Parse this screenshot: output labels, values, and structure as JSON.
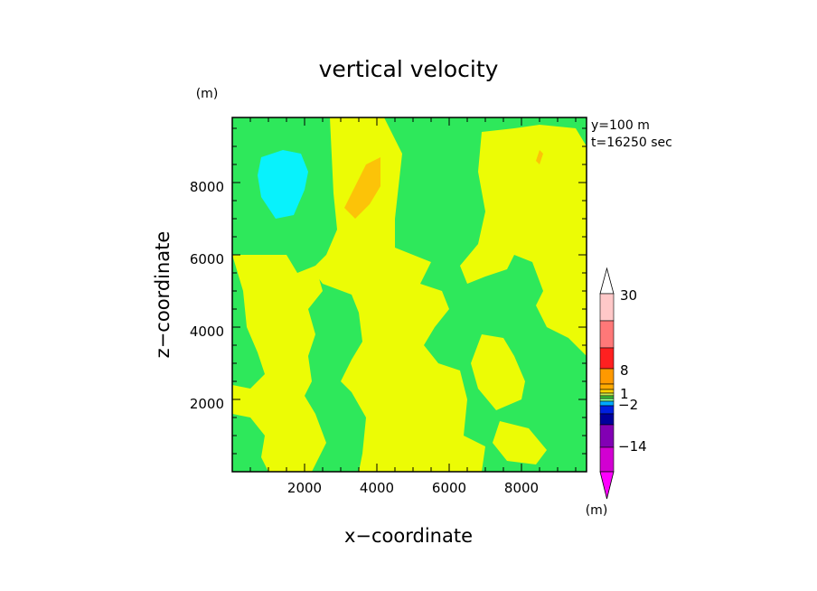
{
  "chart_data": {
    "type": "heatmap",
    "title": "vertical velocity",
    "xlabel": "x−coordinate",
    "ylabel": "z−coordinate",
    "x_unit": "(m)",
    "y_unit": "(m)",
    "xlim": [
      0,
      9800
    ],
    "ylim": [
      0,
      9800
    ],
    "xticks": [
      2000,
      4000,
      6000,
      8000
    ],
    "yticks": [
      2000,
      4000,
      6000,
      8000
    ],
    "annotations": [
      "y=100  m",
      "t=16250  sec"
    ],
    "colorbar": {
      "labels": [
        "30",
        "8",
        "1",
        "−2",
        "−14"
      ],
      "colors": [
        "#ff00ff",
        "#c800c8",
        "#8c00aa",
        "#0000aa",
        "#0000ff",
        "#0096ff",
        "#00c8c8",
        "#00ffff",
        "#8cff8c",
        "#00e650",
        "#c8ff00",
        "#ffd700",
        "#ff8c00",
        "#ff0000",
        "#ff6464",
        "#ff9696",
        "#ffc8c8",
        "#ffffff"
      ]
    },
    "regions": [
      {
        "level": "green",
        "color": "#2ee85b",
        "polygons": [
          [
            [
              0,
              9800
            ],
            [
              9800,
              9800
            ],
            [
              9800,
              0
            ],
            [
              0,
              0
            ]
          ]
        ]
      },
      {
        "level": "yellow",
        "color": "#ecfc05",
        "polygons": [
          [
            [
              2700,
              9800
            ],
            [
              4200,
              9800
            ],
            [
              4700,
              8800
            ],
            [
              4500,
              7000
            ],
            [
              4500,
              6200
            ],
            [
              5000,
              6000
            ],
            [
              5500,
              5800
            ],
            [
              5200,
              5200
            ],
            [
              5800,
              5000
            ],
            [
              6000,
              4500
            ],
            [
              5600,
              4000
            ],
            [
              5300,
              3500
            ],
            [
              5700,
              3000
            ],
            [
              6300,
              2800
            ],
            [
              6500,
              2000
            ],
            [
              6400,
              1000
            ],
            [
              7000,
              700
            ],
            [
              6900,
              0
            ],
            [
              3500,
              0
            ],
            [
              3600,
              500
            ],
            [
              3700,
              1500
            ],
            [
              3300,
              2200
            ],
            [
              3000,
              2500
            ],
            [
              3300,
              3100
            ],
            [
              3600,
              3600
            ],
            [
              3500,
              4400
            ],
            [
              3300,
              4900
            ],
            [
              2500,
              5200
            ],
            [
              2200,
              5600
            ],
            [
              2600,
              6000
            ],
            [
              2900,
              6700
            ],
            [
              2800,
              7700
            ]
          ],
          [
            [
              0,
              6000
            ],
            [
              1500,
              6000
            ],
            [
              1800,
              5500
            ],
            [
              2300,
              5700
            ],
            [
              2500,
              5000
            ],
            [
              2100,
              4500
            ],
            [
              2300,
              3800
            ],
            [
              2100,
              3200
            ],
            [
              2200,
              2500
            ],
            [
              2000,
              2100
            ],
            [
              2300,
              1600
            ],
            [
              2600,
              800
            ],
            [
              2200,
              0
            ],
            [
              1000,
              0
            ],
            [
              800,
              400
            ],
            [
              900,
              1000
            ],
            [
              500,
              1500
            ],
            [
              0,
              1600
            ],
            [
              0,
              2400
            ],
            [
              500,
              2300
            ],
            [
              900,
              2700
            ],
            [
              700,
              3300
            ],
            [
              400,
              4000
            ],
            [
              300,
              5000
            ]
          ],
          [
            [
              6900,
              9400
            ],
            [
              7800,
              9500
            ],
            [
              8500,
              9600
            ],
            [
              9500,
              9500
            ],
            [
              9800,
              9000
            ],
            [
              9800,
              3200
            ],
            [
              9300,
              3700
            ],
            [
              8700,
              4000
            ],
            [
              8400,
              4600
            ],
            [
              8600,
              5000
            ],
            [
              8300,
              5800
            ],
            [
              7800,
              6000
            ],
            [
              7600,
              5600
            ],
            [
              7000,
              5400
            ],
            [
              6500,
              5200
            ],
            [
              6300,
              5700
            ],
            [
              6800,
              6300
            ],
            [
              7000,
              7200
            ],
            [
              6800,
              8300
            ]
          ],
          [
            [
              6900,
              3800
            ],
            [
              7500,
              3700
            ],
            [
              7800,
              3200
            ],
            [
              8100,
              2500
            ],
            [
              8000,
              2000
            ],
            [
              7300,
              1700
            ],
            [
              6800,
              2300
            ],
            [
              6600,
              3000
            ]
          ],
          [
            [
              7400,
              1400
            ],
            [
              8200,
              1200
            ],
            [
              8700,
              600
            ],
            [
              8400,
              200
            ],
            [
              7600,
              300
            ],
            [
              7200,
              800
            ]
          ]
        ]
      },
      {
        "level": "orange",
        "color": "#fcc308",
        "polygons": [
          [
            [
              3100,
              7300
            ],
            [
              3700,
              8500
            ],
            [
              4100,
              8700
            ],
            [
              4100,
              7900
            ],
            [
              3800,
              7400
            ],
            [
              3400,
              7000
            ]
          ],
          [
            [
              8400,
              8600
            ],
            [
              8500,
              8900
            ],
            [
              8600,
              8800
            ],
            [
              8500,
              8500
            ]
          ]
        ]
      },
      {
        "level": "cyan",
        "color": "#08f2fc",
        "polygons": [
          [
            [
              800,
              8700
            ],
            [
              1400,
              8900
            ],
            [
              1900,
              8800
            ],
            [
              2100,
              8300
            ],
            [
              2000,
              7800
            ],
            [
              1700,
              7100
            ],
            [
              1200,
              7000
            ],
            [
              800,
              7600
            ],
            [
              700,
              8200
            ]
          ]
        ]
      }
    ]
  }
}
